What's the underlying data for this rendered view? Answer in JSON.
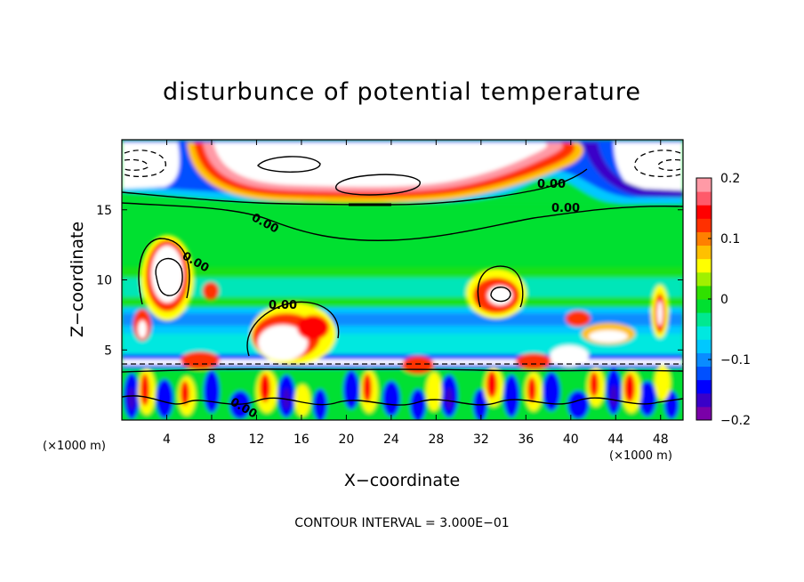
{
  "chart_data": {
    "type": "heatmap",
    "title": "disturbunce of potential temperature",
    "xlabel": "X−coordinate",
    "ylabel": "Z−coordinate",
    "x_unit": "(×1000 m)",
    "x_unit_right": "(×1000 m)",
    "xlim": [
      0,
      50
    ],
    "ylim": [
      0,
      20
    ],
    "x_ticks": [
      4,
      8,
      12,
      16,
      20,
      24,
      28,
      32,
      36,
      40,
      44,
      48
    ],
    "y_ticks": [
      5,
      10,
      15
    ],
    "colorbar": {
      "range": [
        -0.2,
        0.2
      ],
      "ticks": [
        {
          "value": 0.2,
          "label": "0.2"
        },
        {
          "value": 0.1,
          "label": "0.1"
        },
        {
          "value": 0,
          "label": "0"
        },
        {
          "value": -0.1,
          "label": "−0.1"
        },
        {
          "value": -0.2,
          "label": "−0.2"
        }
      ],
      "colors": [
        "#7a00a8",
        "#3a00c8",
        "#0000ff",
        "#0050ff",
        "#0a8cff",
        "#00c8ff",
        "#00e8e0",
        "#00e890",
        "#00e030",
        "#30e000",
        "#a0f000",
        "#ffff00",
        "#ffc000",
        "#ff8000",
        "#ff3000",
        "#ff0000",
        "#ff5a6a",
        "#ff9aa6"
      ]
    },
    "contour_labels": [
      "0.00",
      "0.00",
      "0.00",
      "0.00",
      "0.00",
      "0.00"
    ],
    "contour_interval": "CONTOUR INTERVAL = 3.000E−01"
  }
}
